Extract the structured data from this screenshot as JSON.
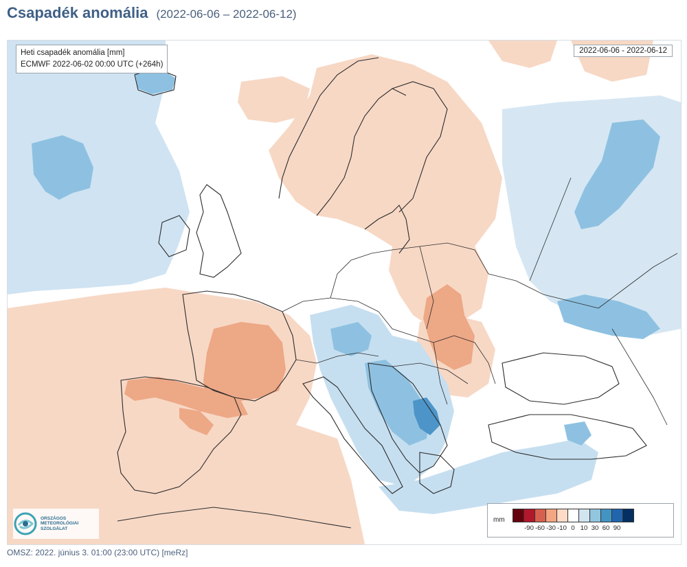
{
  "header": {
    "title": "Csapadék anomália",
    "period": "(2022-06-06 – 2022-06-12)"
  },
  "map": {
    "info_line1": "Heti csapadék anomália [mm]",
    "info_line2": "ECMWF 2022-06-02 00:00 UTC (+264h)",
    "date_range": "2022-06-06 - 2022-06-12",
    "colors": {
      "sea_blue_light": "#cfe3f2",
      "anomaly_wet_10": "#c6dff0",
      "anomaly_wet_30": "#8ec1e1",
      "anomaly_wet_60": "#4d95c8",
      "anomaly_dry_10": "#f7d8c5",
      "anomaly_dry_30": "#eda886",
      "neutral": "#ffffff",
      "border_line": "#2b2b2b"
    }
  },
  "legend": {
    "unit": "mm",
    "colors": [
      "#67000d",
      "#b2182b",
      "#d6604d",
      "#f4a582",
      "#fddbc7",
      "#ffffff",
      "#d1e5f0",
      "#92c5de",
      "#4393c3",
      "#2166ac",
      "#053061"
    ],
    "ticks": [
      "-90",
      "-60",
      "-30",
      "-10",
      "0",
      "10",
      "30",
      "60",
      "90"
    ]
  },
  "logo": {
    "line1": "ORSZÁGOS",
    "line2": "METEOROLÓGIAI",
    "line3": "SZOLGÁLAT"
  },
  "footer": {
    "text": "OMSZ: 2022. június 3. 01:00 (23:00 UTC) [meRz]"
  }
}
